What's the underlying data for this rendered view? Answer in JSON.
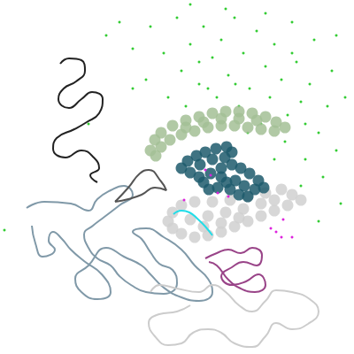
{
  "chart_data": {
    "type": "scatter",
    "xlim": [
      0,
      400
    ],
    "ylim": [
      0,
      400
    ],
    "tick_labels": false,
    "grid": false,
    "series": [
      {
        "type": "scatter",
        "marker": "point",
        "color": "#33cc33",
        "x": [
          120,
          135,
          150,
          170,
          185,
          200,
          205,
          215,
          225,
          230,
          240,
          245,
          250,
          258,
          265,
          270,
          275,
          282,
          290,
          295,
          300,
          305,
          310,
          318,
          322,
          325,
          330,
          335,
          340,
          345,
          350,
          355,
          360,
          365,
          370,
          375,
          380,
          385,
          150,
          165,
          190,
          210,
          235,
          280,
          340,
          360,
          310,
          255,
          215,
          380,
          390,
          100,
          330,
          300,
          345,
          225,
          266,
          5
        ],
        "values": [
          360,
          375,
          345,
          370,
          340,
          380,
          320,
          350,
          305,
          370,
          335,
          290,
          355,
          315,
          380,
          280,
          340,
          300,
          365,
          260,
          325,
          290,
          350,
          310,
          240,
          270,
          375,
          330,
          285,
          220,
          305,
          355,
          250,
          200,
          280,
          320,
          230,
          170,
          300,
          310,
          290,
          280,
          300,
          250,
          190,
          150,
          220,
          390,
          395,
          360,
          290,
          260,
          340,
          385,
          260,
          330,
          305,
          140
        ]
      },
      {
        "type": "scatter",
        "marker": "circle",
        "color": "#a3bf95",
        "x": [
          170,
          175,
          182,
          195,
          210,
          225,
          240,
          255,
          270,
          285,
          300,
          312,
          322,
          310,
          295,
          280,
          265,
          250,
          235,
          220,
          205,
          192,
          182,
          176,
          250,
          270,
          290,
          230,
          210
        ],
        "values": [
          230,
          242,
          250,
          258,
          264,
          268,
          272,
          274,
          274,
          272,
          268,
          262,
          256,
          252,
          254,
          256,
          258,
          258,
          256,
          252,
          248,
          242,
          234,
          224,
          266,
          266,
          264,
          262,
          256
        ]
      },
      {
        "type": "scatter",
        "marker": "circle",
        "color": "#d0d0d0",
        "x": [
          190,
          195,
          205,
          220,
          240,
          260,
          280,
          300,
          318,
          330,
          325,
          310,
          295,
          280,
          265,
          250,
          235,
          220,
          205,
          195,
          215,
          235,
          255,
          275,
          295,
          250,
          230,
          270,
          310,
          340
        ],
        "values": [
          150,
          160,
          168,
          172,
          172,
          174,
          178,
          182,
          186,
          180,
          168,
          162,
          156,
          150,
          144,
          138,
          134,
          132,
          136,
          142,
          152,
          156,
          160,
          164,
          170,
          148,
          144,
          154,
          174,
          174
        ]
      },
      {
        "type": "scatter",
        "marker": "circle",
        "color": "#1d5a6c",
        "x": [
          205,
          212,
          222,
          232,
          244,
          256,
          262,
          254,
          240,
          226,
          215,
          225,
          238,
          250,
          262,
          272,
          282,
          292,
          298,
          288,
          276,
          266,
          256,
          246,
          236,
          230,
          270,
          280,
          260,
          250
        ],
        "values": [
          210,
          218,
          224,
          228,
          232,
          234,
          228,
          222,
          220,
          214,
          205,
          200,
          204,
          210,
          214,
          210,
          204,
          196,
          188,
          186,
          190,
          196,
          194,
          188,
          186,
          194,
          180,
          178,
          186,
          200
        ]
      },
      {
        "type": "line",
        "color": "#222222",
        "x": [
          68,
          78,
          92,
          96,
          86,
          72,
          66,
          78,
          92,
          104,
          116,
          112,
          98,
          84,
          64,
          60,
          74,
          92,
          106,
          112,
          102,
          110
        ],
        "values": [
          328,
          334,
          332,
          320,
          308,
          300,
          288,
          278,
          288,
          296,
          288,
          272,
          262,
          254,
          244,
          232,
          222,
          230,
          222,
          210,
          202,
          194
        ]
      },
      {
        "type": "line",
        "color": "#8099a8",
        "x": [
          30,
          50,
          80,
          100,
          110,
          125,
          140,
          150,
          135,
          118,
          105,
          95,
          100,
          110,
          125,
          135,
          148,
          165,
          185,
          200,
          195,
          180,
          170,
          160,
          150,
          165,
          185,
          205,
          220,
          235,
          240,
          225,
          205,
          185,
          170,
          160,
          140,
          120,
          100,
          85,
          92,
          110,
          125,
          115,
          95,
          80,
          70,
          60,
          55,
          62,
          48,
          40,
          36
        ],
        "values": [
          165,
          172,
          170,
          162,
          175,
          185,
          190,
          180,
          168,
          155,
          145,
          135,
          120,
          108,
          100,
          88,
          78,
          70,
          68,
          80,
          95,
          102,
          115,
          130,
          138,
          142,
          132,
          118,
          100,
          85,
          70,
          60,
          64,
          75,
          90,
          100,
          110,
          120,
          100,
          85,
          70,
          62,
          70,
          90,
          105,
          118,
          130,
          138,
          128,
          118,
          110,
          125,
          145
        ]
      },
      {
        "type": "line",
        "color": "#555555",
        "x": [
          130,
          145,
          158,
          168,
          182,
          188,
          175,
          160,
          145,
          130
        ],
        "values": [
          172,
          188,
          204,
          208,
          195,
          185,
          188,
          180,
          175,
          172
        ]
      },
      {
        "type": "line",
        "color": "#cccccc",
        "x": [
          170,
          180,
          200,
          225,
          240,
          255,
          270,
          285,
          300,
          312,
          330,
          350,
          360,
          348,
          330,
          312,
          300,
          285,
          265,
          250,
          235,
          218,
          205,
          190,
          175,
          168,
          180,
          200,
          215
        ],
        "values": [
          70,
          78,
          74,
          70,
          78,
          70,
          55,
          48,
          60,
          72,
          70,
          62,
          48,
          34,
          28,
          35,
          20,
          8,
          12,
          24,
          28,
          24,
          12,
          10,
          20,
          35,
          45,
          48,
          55
        ]
      },
      {
        "type": "line",
        "color": "#994488",
        "x": [
          232,
          245,
          258,
          272,
          285,
          296,
          290,
          275,
          262,
          250,
          262,
          278,
          292,
          300,
          288,
          272,
          258,
          245,
          236
        ],
        "values": [
          108,
          114,
          118,
          114,
          120,
          112,
          100,
          104,
          98,
          88,
          78,
          82,
          90,
          78,
          70,
          74,
          84,
          100,
          104
        ]
      },
      {
        "type": "scatter",
        "marker": "point",
        "color": "#dd22dd",
        "x": [
          232,
          238,
          246,
          258,
          312,
          318,
          306,
          320,
          330,
          208
        ],
        "values": [
          208,
          202,
          182,
          178,
          138,
          132,
          142,
          152,
          132,
          174
        ]
      },
      {
        "type": "line",
        "color": "#22dde8",
        "x": [
          196,
          205,
          214,
          224,
          232,
          240
        ],
        "values": [
          158,
          162,
          160,
          152,
          144,
          134
        ]
      }
    ]
  }
}
